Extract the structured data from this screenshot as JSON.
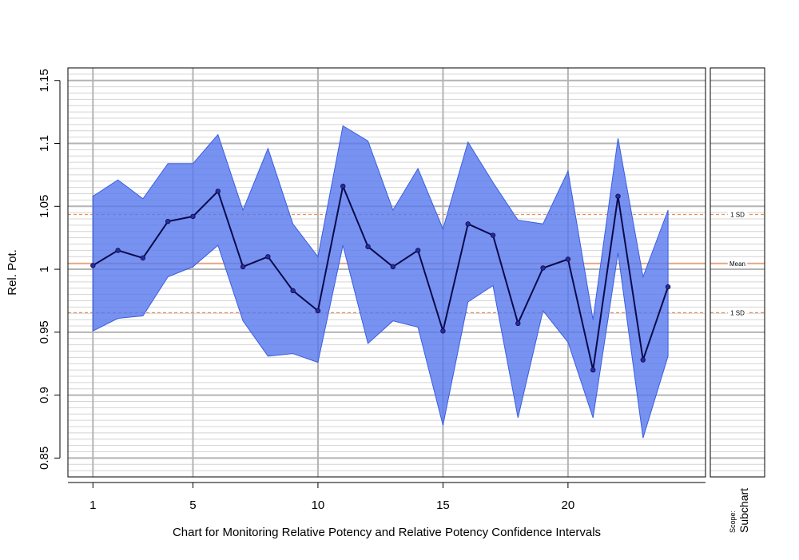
{
  "chart_data": {
    "type": "line",
    "xlabel": "Chart for Monitoring Relative Potency and Relative Potency Confidence Intervals",
    "ylabel": "Rel. Pot.",
    "xlim": [
      0,
      25.5
    ],
    "ylim": [
      0.835,
      1.16
    ],
    "x_ticks": [
      1,
      5,
      10,
      15,
      20
    ],
    "y_ticks": [
      0.85,
      0.9,
      0.95,
      1,
      1.05,
      1.1,
      1.15
    ],
    "y_tick_labels": [
      "0.85",
      "0.9",
      "0.95",
      "1",
      "1.05",
      "1.1",
      "1.15"
    ],
    "grid": true,
    "series": [
      {
        "x": [
          1,
          2,
          3,
          4,
          5,
          6,
          7,
          8,
          9,
          10,
          11,
          12,
          13,
          14,
          15,
          16,
          17,
          18,
          19,
          20,
          21,
          22,
          23,
          24
        ],
        "values": [
          1.003,
          1.015,
          1.009,
          1.038,
          1.042,
          1.062,
          1.002,
          1.01,
          0.983,
          0.967,
          1.066,
          1.018,
          1.002,
          1.015,
          0.951,
          1.036,
          1.027,
          0.957,
          1.001,
          1.008,
          0.92,
          1.058,
          0.928,
          0.986
        ],
        "lower": [
          0.951,
          0.961,
          0.963,
          0.994,
          1.002,
          1.019,
          0.959,
          0.931,
          0.933,
          0.926,
          1.019,
          0.941,
          0.959,
          0.954,
          0.876,
          0.974,
          0.987,
          0.882,
          0.967,
          0.942,
          0.882,
          1.013,
          0.866,
          0.931
        ],
        "upper": [
          1.058,
          1.071,
          1.056,
          1.084,
          1.084,
          1.107,
          1.047,
          1.096,
          1.036,
          1.01,
          1.114,
          1.102,
          1.047,
          1.08,
          1.032,
          1.101,
          1.069,
          1.039,
          1.036,
          1.078,
          0.96,
          1.104,
          0.994,
          1.047
        ],
        "line_color": "#0a0a4a",
        "band_color": "#5577ee"
      }
    ],
    "reference_lines": [
      {
        "value": 1.0045,
        "label": "Mean",
        "style": "solid",
        "color": "#f0a070"
      },
      {
        "value": 1.0435,
        "label": "1 SD",
        "style": "dashed",
        "color": "#e8905a"
      },
      {
        "value": 0.9655,
        "label": "1 SD",
        "style": "dashed",
        "color": "#e8905a"
      }
    ],
    "subchart": {
      "label_small": "Scope:",
      "label_big": "Subchart"
    }
  }
}
